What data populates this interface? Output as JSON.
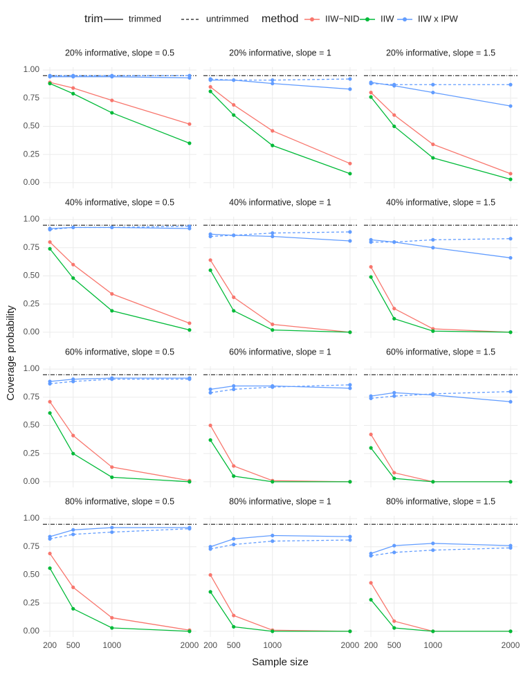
{
  "legend": {
    "trim": {
      "title": "trim",
      "items": [
        {
          "label": "trimmed",
          "dash": "solid"
        },
        {
          "label": "untrimmed",
          "dash": "dashed"
        }
      ]
    },
    "method": {
      "title": "method",
      "items": [
        {
          "label": "IIW−NID",
          "color": "#F8766D"
        },
        {
          "label": "IIW",
          "color": "#00BA38"
        },
        {
          "label": "IIW x IPW",
          "color": "#619CFF"
        }
      ]
    }
  },
  "x_label": "Sample size",
  "y_label": "Coverage probability",
  "scales": {
    "xlim": [
      110,
      2090
    ],
    "ylim": [
      -0.05,
      1.025
    ],
    "xticks": [
      200,
      500,
      1000,
      2000
    ],
    "yticks": [
      {
        "value": 0,
        "label": "0.00"
      },
      {
        "value": 0.25,
        "label": "0.25"
      },
      {
        "value": 0.5,
        "label": "0.50"
      },
      {
        "value": 0.75,
        "label": "0.75"
      },
      {
        "value": 1,
        "label": "1.00"
      }
    ],
    "reference_line": 0.95,
    "grid": true
  },
  "chart_data": [
    {
      "type": "line",
      "title": "20% informative, slope = 0.5",
      "x": [
        200,
        500,
        1000,
        2000
      ],
      "series": [
        {
          "method": 0,
          "trim": 0,
          "values": [
            0.89,
            0.84,
            0.73,
            0.52
          ]
        },
        {
          "method": 1,
          "trim": 0,
          "values": [
            0.88,
            0.79,
            0.62,
            0.35
          ]
        },
        {
          "method": 2,
          "trim": 0,
          "values": [
            0.94,
            0.94,
            0.94,
            0.93
          ]
        },
        {
          "method": 2,
          "trim": 1,
          "values": [
            0.95,
            0.95,
            0.95,
            0.95
          ]
        }
      ]
    },
    {
      "type": "line",
      "title": "20% informative, slope = 1",
      "x": [
        200,
        500,
        1000,
        2000
      ],
      "series": [
        {
          "method": 0,
          "trim": 0,
          "values": [
            0.85,
            0.69,
            0.46,
            0.17
          ]
        },
        {
          "method": 1,
          "trim": 0,
          "values": [
            0.81,
            0.6,
            0.33,
            0.08
          ]
        },
        {
          "method": 2,
          "trim": 0,
          "values": [
            0.91,
            0.91,
            0.88,
            0.83
          ]
        },
        {
          "method": 2,
          "trim": 1,
          "values": [
            0.92,
            0.91,
            0.91,
            0.92
          ]
        }
      ]
    },
    {
      "type": "line",
      "title": "20% informative, slope = 1.5",
      "x": [
        200,
        500,
        1000,
        2000
      ],
      "series": [
        {
          "method": 0,
          "trim": 0,
          "values": [
            0.8,
            0.6,
            0.34,
            0.08
          ]
        },
        {
          "method": 1,
          "trim": 0,
          "values": [
            0.76,
            0.5,
            0.22,
            0.03
          ]
        },
        {
          "method": 2,
          "trim": 0,
          "values": [
            0.89,
            0.86,
            0.8,
            0.68
          ]
        },
        {
          "method": 2,
          "trim": 1,
          "values": [
            0.88,
            0.87,
            0.87,
            0.87
          ]
        }
      ]
    },
    {
      "type": "line",
      "title": "40% informative, slope = 0.5",
      "x": [
        200,
        500,
        1000,
        2000
      ],
      "series": [
        {
          "method": 0,
          "trim": 0,
          "values": [
            0.8,
            0.6,
            0.34,
            0.08
          ]
        },
        {
          "method": 1,
          "trim": 0,
          "values": [
            0.74,
            0.48,
            0.19,
            0.02
          ]
        },
        {
          "method": 2,
          "trim": 0,
          "values": [
            0.92,
            0.93,
            0.93,
            0.92
          ]
        },
        {
          "method": 2,
          "trim": 1,
          "values": [
            0.91,
            0.93,
            0.93,
            0.94
          ]
        }
      ]
    },
    {
      "type": "line",
      "title": "40% informative, slope = 1",
      "x": [
        200,
        500,
        1000,
        2000
      ],
      "series": [
        {
          "method": 0,
          "trim": 0,
          "values": [
            0.64,
            0.31,
            0.07,
            0
          ]
        },
        {
          "method": 1,
          "trim": 0,
          "values": [
            0.55,
            0.19,
            0.02,
            0
          ]
        },
        {
          "method": 2,
          "trim": 0,
          "values": [
            0.87,
            0.86,
            0.85,
            0.81
          ]
        },
        {
          "method": 2,
          "trim": 1,
          "values": [
            0.85,
            0.86,
            0.88,
            0.89
          ]
        }
      ]
    },
    {
      "type": "line",
      "title": "40% informative, slope = 1.5",
      "x": [
        200,
        500,
        1000,
        2000
      ],
      "series": [
        {
          "method": 0,
          "trim": 0,
          "values": [
            0.58,
            0.21,
            0.03,
            0
          ]
        },
        {
          "method": 1,
          "trim": 0,
          "values": [
            0.49,
            0.12,
            0.01,
            0
          ]
        },
        {
          "method": 2,
          "trim": 0,
          "values": [
            0.82,
            0.8,
            0.75,
            0.66
          ]
        },
        {
          "method": 2,
          "trim": 1,
          "values": [
            0.8,
            0.8,
            0.82,
            0.83
          ]
        }
      ]
    },
    {
      "type": "line",
      "title": "60% informative, slope = 0.5",
      "x": [
        200,
        500,
        1000,
        2000
      ],
      "series": [
        {
          "method": 0,
          "trim": 0,
          "values": [
            0.71,
            0.41,
            0.13,
            0.01
          ]
        },
        {
          "method": 1,
          "trim": 0,
          "values": [
            0.61,
            0.25,
            0.04,
            0
          ]
        },
        {
          "method": 2,
          "trim": 0,
          "values": [
            0.89,
            0.91,
            0.92,
            0.92
          ]
        },
        {
          "method": 2,
          "trim": 1,
          "values": [
            0.87,
            0.89,
            0.91,
            0.91
          ]
        }
      ]
    },
    {
      "type": "line",
      "title": "60% informative, slope = 1",
      "x": [
        200,
        500,
        1000,
        2000
      ],
      "series": [
        {
          "method": 0,
          "trim": 0,
          "values": [
            0.5,
            0.14,
            0.01,
            0
          ]
        },
        {
          "method": 1,
          "trim": 0,
          "values": [
            0.37,
            0.05,
            0,
            0
          ]
        },
        {
          "method": 2,
          "trim": 0,
          "values": [
            0.82,
            0.85,
            0.85,
            0.83
          ]
        },
        {
          "method": 2,
          "trim": 1,
          "values": [
            0.79,
            0.82,
            0.84,
            0.86
          ]
        }
      ]
    },
    {
      "type": "line",
      "title": "60% informative, slope = 1.5",
      "x": [
        200,
        500,
        1000,
        2000
      ],
      "series": [
        {
          "method": 0,
          "trim": 0,
          "values": [
            0.42,
            0.08,
            0,
            0
          ]
        },
        {
          "method": 1,
          "trim": 0,
          "values": [
            0.3,
            0.03,
            0,
            0
          ]
        },
        {
          "method": 2,
          "trim": 0,
          "values": [
            0.76,
            0.79,
            0.77,
            0.71
          ]
        },
        {
          "method": 2,
          "trim": 1,
          "values": [
            0.74,
            0.76,
            0.78,
            0.8
          ]
        }
      ]
    },
    {
      "type": "line",
      "title": "80% informative, slope = 0.5",
      "x": [
        200,
        500,
        1000,
        2000
      ],
      "series": [
        {
          "method": 0,
          "trim": 0,
          "values": [
            0.69,
            0.39,
            0.12,
            0.01
          ]
        },
        {
          "method": 1,
          "trim": 0,
          "values": [
            0.56,
            0.2,
            0.03,
            0
          ]
        },
        {
          "method": 2,
          "trim": 0,
          "values": [
            0.84,
            0.9,
            0.92,
            0.92
          ]
        },
        {
          "method": 2,
          "trim": 1,
          "values": [
            0.82,
            0.86,
            0.88,
            0.91
          ]
        }
      ]
    },
    {
      "type": "line",
      "title": "80% informative, slope = 1",
      "x": [
        200,
        500,
        1000,
        2000
      ],
      "series": [
        {
          "method": 0,
          "trim": 0,
          "values": [
            0.5,
            0.14,
            0.01,
            0
          ]
        },
        {
          "method": 1,
          "trim": 0,
          "values": [
            0.35,
            0.04,
            0,
            0
          ]
        },
        {
          "method": 2,
          "trim": 0,
          "values": [
            0.75,
            0.82,
            0.85,
            0.84
          ]
        },
        {
          "method": 2,
          "trim": 1,
          "values": [
            0.73,
            0.77,
            0.8,
            0.81
          ]
        }
      ]
    },
    {
      "type": "line",
      "title": "80% informative, slope = 1.5",
      "x": [
        200,
        500,
        1000,
        2000
      ],
      "series": [
        {
          "method": 0,
          "trim": 0,
          "values": [
            0.43,
            0.09,
            0,
            0
          ]
        },
        {
          "method": 1,
          "trim": 0,
          "values": [
            0.28,
            0.03,
            0,
            0
          ]
        },
        {
          "method": 2,
          "trim": 0,
          "values": [
            0.69,
            0.76,
            0.78,
            0.76
          ]
        },
        {
          "method": 2,
          "trim": 1,
          "values": [
            0.67,
            0.7,
            0.72,
            0.74
          ]
        }
      ]
    }
  ]
}
